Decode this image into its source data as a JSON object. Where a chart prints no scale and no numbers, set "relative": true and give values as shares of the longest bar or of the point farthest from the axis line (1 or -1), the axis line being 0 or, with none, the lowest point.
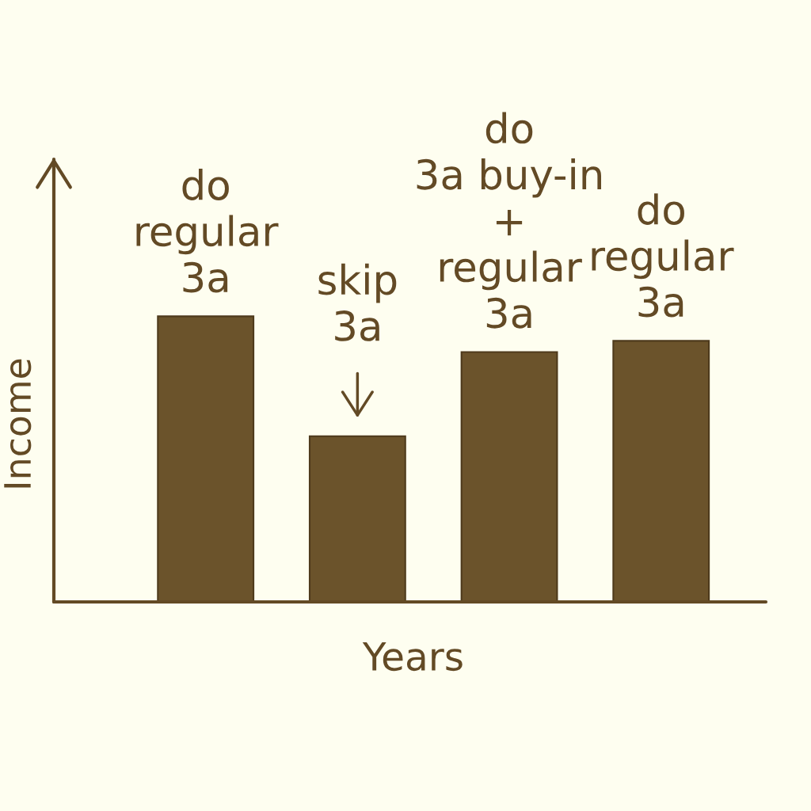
{
  "chart_data": {
    "type": "bar",
    "relative": true,
    "categories": [
      null,
      null,
      null,
      null
    ],
    "values": [
      1,
      0.58,
      0.875,
      0.914
    ],
    "color": "#6b532b",
    "xlabel": "Years",
    "ylabel": "Income",
    "grid": false,
    "annotations": [
      {
        "text": "do\nregular\n3a",
        "y": 1
      },
      {
        "text": "skip\n3a",
        "y": 0.58
      },
      {
        "text": "do\n3a buy-in\n+\nregular\n3a",
        "y": 0.875
      },
      {
        "text": "do\nregular\n3a",
        "y": 0.914
      }
    ]
  }
}
